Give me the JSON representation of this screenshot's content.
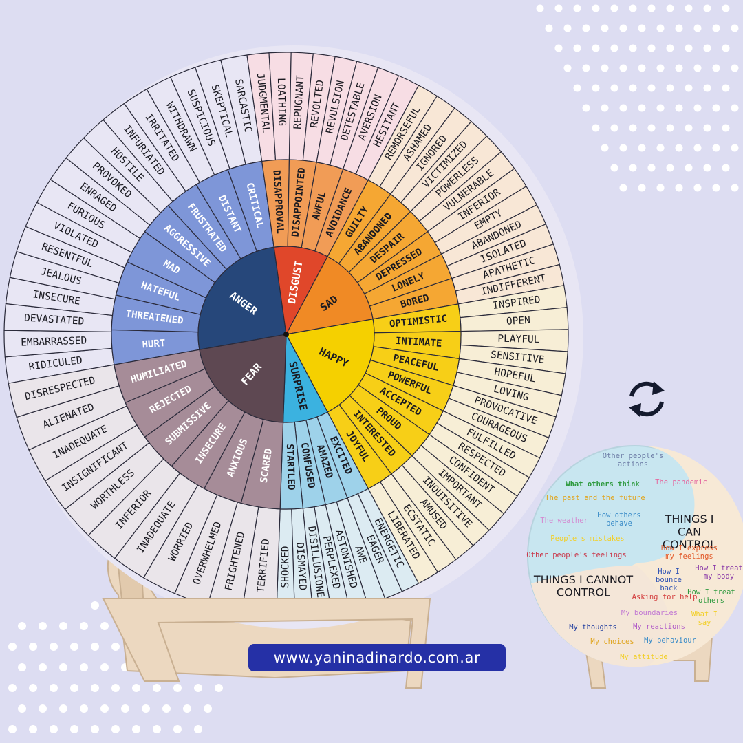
{
  "colors": {
    "background": "#ddddf2",
    "anger": "#26477a",
    "anger_mid": "#7e96d8",
    "anger_outer": "#e8e6f4",
    "disgust": "#e0472a",
    "disgust_mid": "#f19c56",
    "disgust_outer": "#f7dde4",
    "sad": "#f08a25",
    "sad_mid": "#f5a733",
    "sad_outer": "#f8e7d6",
    "happy": "#f5d000",
    "happy_mid": "#f7cf17",
    "happy_outer": "#f7eed6",
    "surprise": "#3bb2e0",
    "surprise_mid": "#9ed2ea",
    "surprise_outer": "#dcebf2",
    "fear": "#5e4852",
    "fear_mid": "#a68c98",
    "fear_outer": "#eae5ea",
    "wood": "#ecd8c0",
    "url_pill": "#2530a6"
  },
  "wheel": {
    "core": [
      {
        "label": "ANGER",
        "key": "anger"
      },
      {
        "label": "DISGUST",
        "key": "disgust"
      },
      {
        "label": "SAD",
        "key": "sad"
      },
      {
        "label": "HAPPY",
        "key": "happy"
      },
      {
        "label": "SURPRISE",
        "key": "surprise"
      },
      {
        "label": "FEAR",
        "key": "fear"
      }
    ],
    "middle": {
      "anger": [
        "HURT",
        "THREATENED",
        "HATEFUL",
        "MAD",
        "AGGRESSIVE",
        "FRUSTRATED",
        "DISTANT",
        "CRITICAL"
      ],
      "disgust": [
        "DISAPPROVAL",
        "DISAPPOINTED",
        "AWFUL",
        "AVOIDANCE"
      ],
      "sad": [
        "GUILTY",
        "ABANDONED",
        "DESPAIR",
        "DEPRESSED",
        "LONELY",
        "BORED"
      ],
      "happy": [
        "OPTIMISTIC",
        "INTIMATE",
        "PEACEFUL",
        "POWERFUL",
        "ACCEPTED",
        "PROUD",
        "INTERESTED",
        "JOYFUL"
      ],
      "surprise": [
        "EXCITED",
        "AMAZED",
        "CONFUSED",
        "STARTLED"
      ],
      "fear": [
        "SCARED",
        "ANXIOUS",
        "INSECURE",
        "SUBMISSIVE",
        "REJECTED",
        "HUMILIATED"
      ]
    },
    "outer": {
      "anger": [
        "RIDICULED",
        "EMBARRASSED",
        "DEVASTATED",
        "INSECURE",
        "JEALOUS",
        "RESENTFUL",
        "VIOLATED",
        "FURIOUS",
        "ENRAGED",
        "PROVOKED",
        "HOSTILE",
        "INFURIATED",
        "IRRITATED",
        "WITHDRAWN",
        "SUSPICIOUS",
        "SKEPTICAL",
        "SARCASTIC"
      ],
      "disgust": [
        "JUDGMENTAL",
        "LOATHING",
        "REPUGNANT",
        "REVOLTED",
        "REVULSION",
        "DETESTABLE",
        "AVERSION",
        "HESITANT"
      ],
      "sad": [
        "REMORSEFUL",
        "ASHAMED",
        "IGNORED",
        "VICTIMIZED",
        "POWERLESS",
        "VULNERABLE",
        "INFERIOR",
        "EMPTY",
        "ABANDONED",
        "ISOLATED",
        "APATHETIC",
        "INDIFFERENT"
      ],
      "happy": [
        "INSPIRED",
        "OPEN",
        "PLAYFUL",
        "SENSITIVE",
        "HOPEFUL",
        "LOVING",
        "PROVOCATIVE",
        "COURAGEOUS",
        "FULFILLED",
        "RESPECTED",
        "CONFIDENT",
        "IMPORTANT",
        "INQUISITIVE",
        "AMUSED",
        "ECSTATIC",
        "LIBERATED"
      ],
      "surprise": [
        "ENERGETIC",
        "EAGER",
        "AWE",
        "ASTONISHED",
        "PERPLEXED",
        "DISILLUSIONED",
        "DISMAYED",
        "SHOCKED"
      ],
      "fear": [
        "TERRIFIED",
        "FRIGHTENED",
        "OVERWHELMED",
        "WORRIED",
        "INADEQUATE",
        "INFERIOR",
        "WORTHLESS",
        "INSIGNIFICANT",
        "INADEQUATE",
        "ALIENATED",
        "DISRESPECTED"
      ]
    }
  },
  "control_board": {
    "can_title": "THINGS I CAN CONTROL",
    "cannot_title": "THINGS I CANNOT CONTROL",
    "cannot_items": [
      {
        "text": "Other people's actions",
        "color": "#6f7fa8"
      },
      {
        "text": "What others think",
        "color": "#2f9a3f"
      },
      {
        "text": "The pandemic",
        "color": "#e46aa0"
      },
      {
        "text": "The past and the future",
        "color": "#e0a51f"
      },
      {
        "text": "The weather",
        "color": "#d48ad0"
      },
      {
        "text": "How others behave",
        "color": "#3a8cc8"
      },
      {
        "text": "People's mistakes",
        "color": "#f2cf27"
      },
      {
        "text": "Other people's feelings",
        "color": "#c9374a"
      }
    ],
    "can_items": [
      {
        "text": "How I express my feelings",
        "color": "#e25a2a"
      },
      {
        "text": "How I bounce back",
        "color": "#3456b5"
      },
      {
        "text": "How I treat my body",
        "color": "#8a3aa8"
      },
      {
        "text": "Asking for help",
        "color": "#d33c3c"
      },
      {
        "text": "How I treat others",
        "color": "#2f9a3f"
      },
      {
        "text": "My boundaries",
        "color": "#c27ad3"
      },
      {
        "text": "What I say",
        "color": "#f2cf27"
      },
      {
        "text": "My thoughts",
        "color": "#2440a0"
      },
      {
        "text": "My reactions",
        "color": "#b05ac8"
      },
      {
        "text": "My choices",
        "color": "#e0a51f"
      },
      {
        "text": "My behaviour",
        "color": "#3a8cc8"
      },
      {
        "text": "My attitude",
        "color": "#f2cf27"
      }
    ]
  },
  "icons": {
    "sync": "sync-arrows-icon"
  },
  "website": "www.yaninadinardo.com.ar"
}
